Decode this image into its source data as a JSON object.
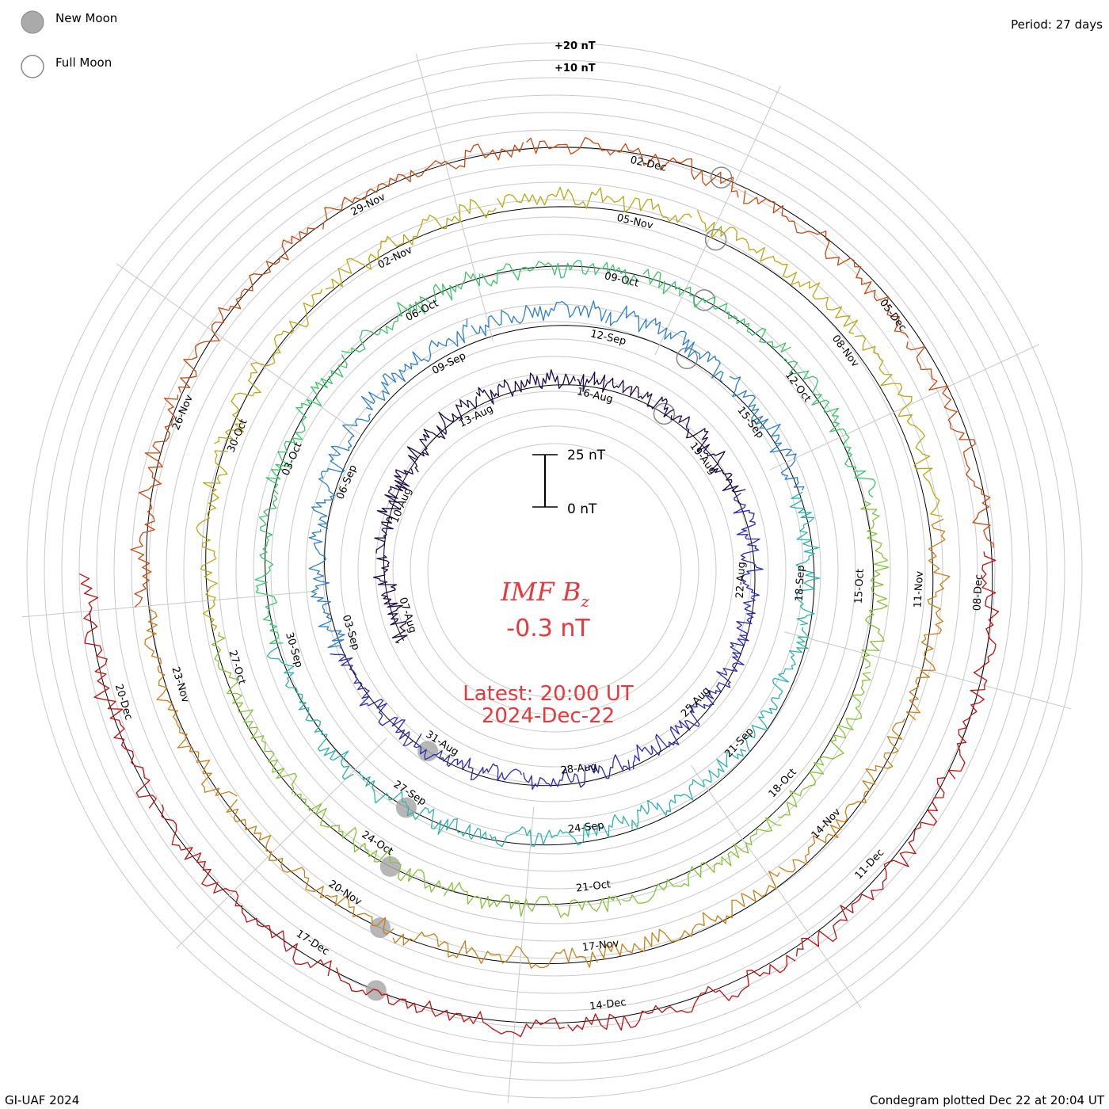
{
  "header": {
    "period": "Period: 27 days"
  },
  "legend": {
    "new_moon": "New Moon",
    "full_moon": "Full Moon",
    "new_moon_color": "#aaaaaa",
    "full_moon_color": "#888888"
  },
  "footer": {
    "credit": "GI-UAF 2024",
    "plotted": "Condegram plotted Dec 22 at 20:04 UT"
  },
  "center": {
    "title_main": "IMF B",
    "title_sub": "z",
    "value": "-0.3 nT",
    "latest": "Latest: 20:00 UT",
    "date": "2024-Dec-22",
    "text_color": "#e8383d"
  },
  "scale_bar": {
    "top_label": "25 nT",
    "bottom_label": "0 nT"
  },
  "chart_data": {
    "type": "line",
    "subtype": "polar condegram (spiral, one revolution per solar rotation)",
    "title": "IMF Bz",
    "latest_value_nT": -0.3,
    "latest_time": "2024-Dec-22 20:00 UT",
    "period_days": 27,
    "start_date": "2024-Aug-07",
    "ring_labels": [
      "+20 nT",
      "+10 nT"
    ],
    "revolutions": [
      {
        "index": 0,
        "color": "#1e0a4a",
        "dates": [
          "07-Aug",
          "10-Aug",
          "13-Aug",
          "16-Aug",
          "19-Aug",
          "22-Aug",
          "25-Aug",
          "28-Aug",
          "31-Aug"
        ]
      },
      {
        "index": 1,
        "color": "#2d2bb0",
        "dates": [
          "03-Sep",
          "06-Sep",
          "09-Sep",
          "12-Sep",
          "15-Sep",
          "18-Sep",
          "21-Sep",
          "24-Sep",
          "27-Sep"
        ]
      },
      {
        "index": 2,
        "color": "#2fa0b8",
        "dates": [
          "30-Sep",
          "03-Oct",
          "06-Oct",
          "09-Oct",
          "12-Oct",
          "15-Oct",
          "18-Oct",
          "21-Oct",
          "24-Oct"
        ]
      },
      {
        "index": 3,
        "color": "#4bbf4a",
        "dates": [
          "27-Oct",
          "30-Oct",
          "02-Nov",
          "05-Nov",
          "08-Nov",
          "11-Nov",
          "14-Nov",
          "17-Nov",
          "20-Nov"
        ]
      },
      {
        "index": 4,
        "color": "#b8a818",
        "dates": [
          "23-Nov",
          "26-Nov",
          "29-Nov",
          "02-Dec",
          "05-Dec",
          "08-Dec",
          "11-Dec",
          "14-Dec",
          "17-Dec"
        ]
      },
      {
        "index": 5,
        "color": "#c01010",
        "dates": [
          "20-Dec"
        ]
      }
    ],
    "color_ramp": [
      "#1e0a4a",
      "#2d2bb0",
      "#2f7fc4",
      "#2fb3a8",
      "#3ec46a",
      "#86c23a",
      "#b8a818",
      "#c8801a",
      "#c84a12",
      "#c01010"
    ],
    "series_values_nT": [
      -1.2,
      3.4,
      5.8,
      -2.1,
      -6.5,
      1.7,
      8.9,
      12.3,
      -4.4,
      -9.8,
      2.6,
      0.9,
      -1.5,
      4.2,
      6.7,
      -3.3,
      -0.8,
      7.6,
      10.1,
      -5.9,
      -2.2,
      3.1,
      1.4,
      -7.3,
      5.0,
      2.2,
      -0.3
    ],
    "series_values_note": "approximate Bz samples (nT) sampled along the spiral, ending at latest value",
    "moon_phases": {
      "new_moon_dates": [
        "04-Aug",
        "03-Sep",
        "02-Oct",
        "01-Nov",
        "01-Dec"
      ],
      "full_moon_dates": [
        "19-Aug",
        "18-Sep",
        "17-Oct",
        "15-Nov",
        "15-Dec"
      ]
    }
  }
}
